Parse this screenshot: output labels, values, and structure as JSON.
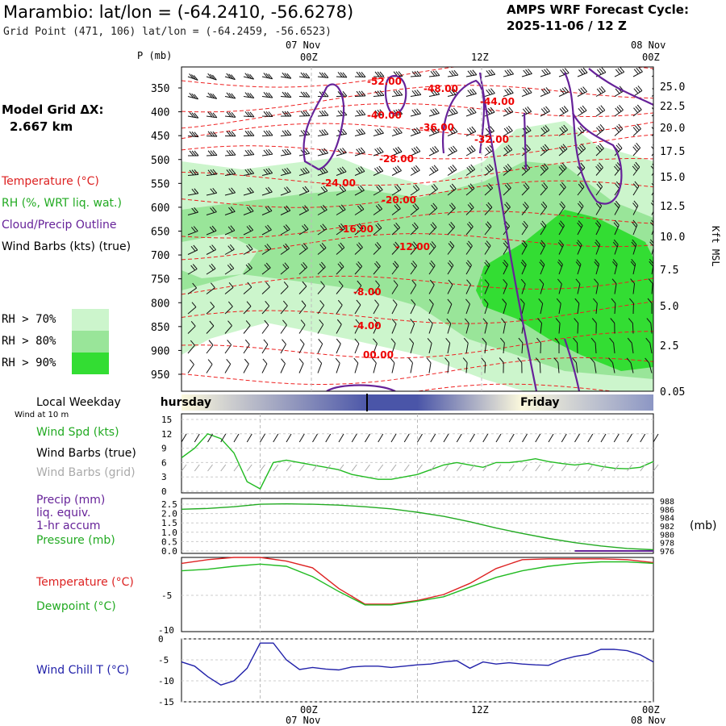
{
  "header": {
    "title": "Marambio:  lat/lon = (-64.2410, -56.6278)",
    "subtitle": "Grid Point (471, 106) lat/lon = (-64.2459, -56.6523)",
    "cycle_line1": "AMPS WRF Forecast Cycle:",
    "cycle_line2": "2025-11-06 / 12  Z",
    "model_grid_label": "Model Grid ΔX:",
    "model_grid_value": "2.667 km"
  },
  "time_axis": {
    "top_dates": [
      "07 Nov",
      "08 Nov"
    ],
    "top_hours": [
      "00Z",
      "12Z",
      "00Z"
    ],
    "bottom_hours": [
      "00Z",
      "12Z",
      "00Z"
    ],
    "bottom_dates": [
      "07 Nov",
      "08 Nov"
    ]
  },
  "legend": {
    "temperature": "Temperature (°C)",
    "rh": "RH (%, WRT liq. wat.)",
    "cloud": "Cloud/Precip Outline",
    "wind": "Wind Barbs (kts) (true)",
    "rh70": "RH > 70%",
    "rh80": "RH > 80%",
    "rh90": "RH > 90%",
    "colors": {
      "temperature": "#ff0000",
      "rh": "#22aa22",
      "cloud": "#662299",
      "rh70": "#ccf5cc",
      "rh80": "#99e599",
      "rh90": "#33dd33"
    }
  },
  "weekday_bar": {
    "title": "Local Weekday",
    "days": [
      "Thursday",
      "Friday"
    ]
  },
  "surface_labels": {
    "wind_at": "Wind at 10 m",
    "wind_spd": "Wind Spd (kts)",
    "barbs_true": "Wind Barbs (true)",
    "barbs_grid": "Wind Barbs (grid)",
    "precip": "Precip (mm)",
    "liq": "liq. equiv.",
    "accum": "1-hr accum",
    "pressure": "Pressure (mb)",
    "pressure_unit": "(mb)",
    "temperature": "Temperature (°C)",
    "dewpoint": "Dewpoint (°C)",
    "windchill": "Wind Chill T (°C)"
  },
  "chart_data": [
    {
      "type": "line",
      "name": "cross-section",
      "ylabel": "P (mb)",
      "y2label": "Kft MSL",
      "pressure_ticks": [
        350,
        400,
        450,
        500,
        550,
        600,
        650,
        700,
        750,
        800,
        850,
        900,
        950
      ],
      "kft_ticks": [
        "25.0",
        "22.5",
        "20.0",
        "17.5",
        "15.0",
        "12.5",
        "10.0",
        "7.5",
        "5.0",
        "2.5",
        "0.05"
      ],
      "temperature_contour_labels": [
        "-52.00",
        "-48.00",
        "-44.00",
        "-40.00",
        "-36.00",
        "-32.00",
        "-28.00",
        "-24.00",
        "-20.00",
        "-16.00",
        "-12.00",
        "-8.00",
        "-4.00",
        "00.00"
      ]
    },
    {
      "type": "line",
      "name": "wind-speed",
      "ylim": [
        0,
        15
      ],
      "yticks": [
        "15",
        "12",
        "9",
        "6",
        "3",
        "0"
      ],
      "x_hours": [
        0,
        1,
        2,
        3,
        4,
        5,
        6,
        7,
        8,
        9,
        10,
        11,
        12,
        13,
        14,
        15,
        16,
        17,
        18,
        19,
        20,
        21,
        22,
        23,
        24,
        25,
        26,
        27,
        28,
        29,
        30,
        31,
        32,
        33,
        34,
        35,
        36
      ],
      "values": [
        7,
        9,
        12,
        11,
        8,
        2,
        0.5,
        6,
        6.5,
        6,
        5.5,
        5,
        4.5,
        3.5,
        3,
        2.5,
        2.5,
        3,
        3.5,
        4.5,
        5.5,
        6,
        5.5,
        5,
        6,
        6,
        6.3,
        6.8,
        6.2,
        5.8,
        5.5,
        5.8,
        5.2,
        4.8,
        4.7,
        5,
        6.2
      ]
    },
    {
      "type": "line",
      "name": "pressure",
      "yticks_left": [
        "2.5",
        "2.0",
        "1.5",
        "1.0",
        "0.5",
        "0.0"
      ],
      "yticks_right": [
        "988",
        "986",
        "984",
        "982",
        "980",
        "978",
        "976"
      ],
      "ylim": [
        976,
        988
      ],
      "x_hours": [
        0,
        2,
        4,
        6,
        8,
        10,
        12,
        14,
        16,
        18,
        20,
        22,
        24,
        26,
        28,
        30,
        32,
        34,
        36
      ],
      "values": [
        986.0,
        986.2,
        986.6,
        987.2,
        987.3,
        987.2,
        987.0,
        986.6,
        986.1,
        985.3,
        984.3,
        983.0,
        981.5,
        980.2,
        979.0,
        978.0,
        977.2,
        976.6,
        976.3
      ]
    },
    {
      "type": "line",
      "name": "temperature-dewpoint",
      "ylim": [
        -10,
        0
      ],
      "yticks": [
        "-5",
        "-10"
      ],
      "x_hours": [
        0,
        2,
        4,
        6,
        8,
        10,
        12,
        14,
        16,
        18,
        20,
        22,
        24,
        26,
        28,
        30,
        32,
        34,
        36
      ],
      "series": [
        {
          "name": "Temperature (°C)",
          "color": "#dd2222",
          "values": [
            -0.8,
            -0.3,
            0,
            0,
            -0.5,
            -1.4,
            -4.2,
            -6.3,
            -6.3,
            -5.8,
            -5.0,
            -3.5,
            -1.5,
            -0.3,
            -0.2,
            -0.2,
            -0.2,
            -0.3,
            -0.7
          ]
        },
        {
          "name": "Dewpoint (°C)",
          "color": "#22bb22",
          "values": [
            -1.8,
            -1.6,
            -1.2,
            -0.9,
            -1.2,
            -2.6,
            -4.6,
            -6.4,
            -6.4,
            -5.9,
            -5.3,
            -4.0,
            -2.7,
            -1.8,
            -1.2,
            -0.8,
            -0.6,
            -0.6,
            -0.8
          ]
        }
      ]
    },
    {
      "type": "line",
      "name": "wind-chill",
      "ylim": [
        -15,
        0
      ],
      "yticks": [
        "0",
        "-5",
        "-10",
        "-15"
      ],
      "x_hours": [
        0,
        1,
        2,
        3,
        4,
        5,
        6,
        7,
        8,
        9,
        10,
        11,
        12,
        13,
        14,
        15,
        16,
        17,
        18,
        19,
        20,
        21,
        22,
        23,
        24,
        25,
        26,
        27,
        28,
        29,
        30,
        31,
        32,
        33,
        34,
        35,
        36
      ],
      "series": [
        {
          "name": "Wind Chill T (°C)",
          "color": "#2222aa",
          "values": [
            -5.5,
            -6.5,
            -9,
            -11,
            -10,
            -7,
            -1,
            -1,
            -5,
            -7.3,
            -6.8,
            -7.2,
            -7.4,
            -6.7,
            -6.5,
            -6.5,
            -6.8,
            -6.5,
            -6.2,
            -6.0,
            -5.5,
            -5.2,
            -7.0,
            -5.5,
            -6.0,
            -5.7,
            -6.0,
            -6.2,
            -6.3,
            -5.0,
            -4.2,
            -3.7,
            -2.5,
            -2.5,
            -2.8,
            -3.8,
            -5.5
          ]
        }
      ]
    }
  ]
}
